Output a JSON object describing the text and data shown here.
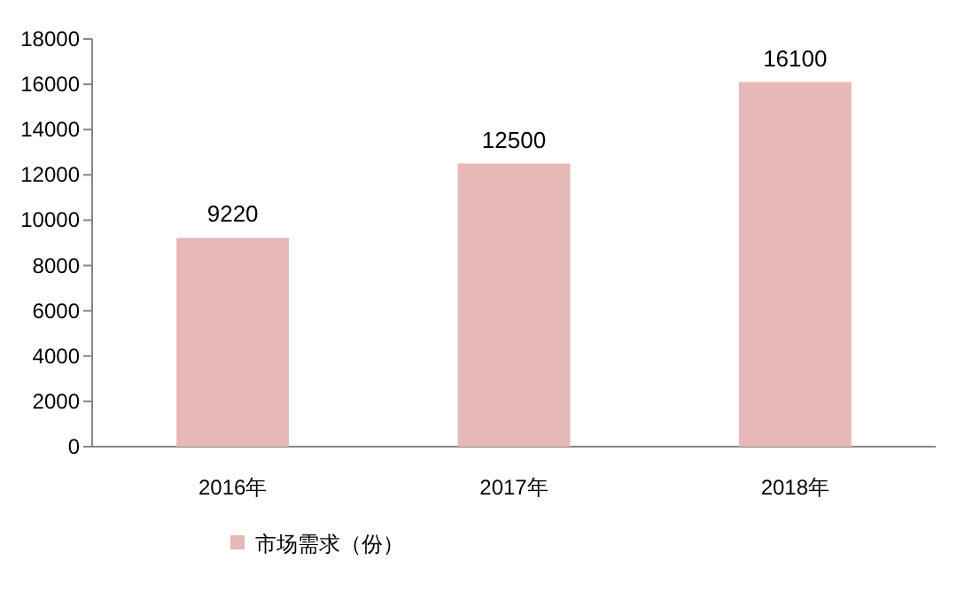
{
  "chart_data": {
    "type": "bar",
    "categories": [
      "2016年",
      "2017年",
      "2018年"
    ],
    "series": [
      {
        "name": "市场需求（份）",
        "color": "#e6b8b7",
        "values": [
          9220,
          12500,
          16100
        ]
      }
    ],
    "ylim": [
      0,
      18000
    ],
    "yticks": [
      0,
      2000,
      4000,
      6000,
      8000,
      10000,
      12000,
      14000,
      16000,
      18000
    ],
    "data_labels": true,
    "legend": "bottom"
  }
}
